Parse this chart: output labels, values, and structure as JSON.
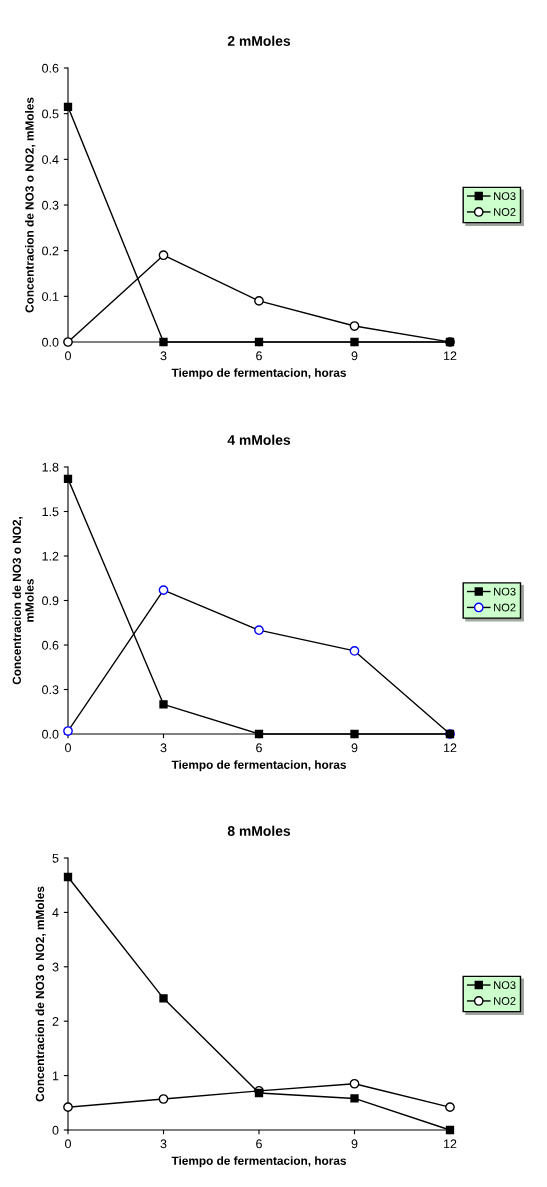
{
  "chart_data": [
    {
      "type": "line",
      "title": "2 mMoles",
      "xlabel": "Tiempo de fermentacion, horas",
      "ylabel": "Concentracion de NO3 o NO2, mMoles",
      "x": [
        0,
        3,
        6,
        9,
        12
      ],
      "xlim": [
        0,
        12
      ],
      "xticks": [
        0,
        3,
        6,
        9,
        12
      ],
      "ylim": [
        0,
        0.6
      ],
      "yticks": [
        {
          "value": 0,
          "label": "0.0"
        },
        {
          "value": 0.1,
          "label": "0.1"
        },
        {
          "value": 0.2,
          "label": "0.2"
        },
        {
          "value": 0.3,
          "label": "0.3"
        },
        {
          "value": 0.4,
          "label": "0.4"
        },
        {
          "value": 0.5,
          "label": "0.5"
        },
        {
          "value": 0.6,
          "label": "0.6"
        }
      ],
      "grid": false,
      "legend": "right",
      "series": [
        {
          "name": "NO3",
          "color": "#000000",
          "marker": "square",
          "values": [
            0.515,
            0,
            0,
            0,
            0
          ]
        },
        {
          "name": "NO2",
          "color": "#000000",
          "marker": "circle",
          "values": [
            0,
            0.19,
            0.09,
            0.035,
            0
          ]
        }
      ]
    },
    {
      "type": "line",
      "title": "4 mMoles",
      "xlabel": "Tiempo de fermentacion, horas",
      "ylabel": "Concentracion de NO3 o NO2,\nmMoles",
      "x": [
        0,
        3,
        6,
        9,
        12
      ],
      "xlim": [
        0,
        12
      ],
      "xticks": [
        0,
        3,
        6,
        9,
        12
      ],
      "ylim": [
        0,
        1.8
      ],
      "yticks": [
        {
          "value": 0,
          "label": "0.0"
        },
        {
          "value": 0.3,
          "label": "0.3"
        },
        {
          "value": 0.6,
          "label": "0.6"
        },
        {
          "value": 0.9,
          "label": "0.9"
        },
        {
          "value": 1.2,
          "label": "1.2"
        },
        {
          "value": 1.5,
          "label": "1.5"
        },
        {
          "value": 1.8,
          "label": "1.8"
        }
      ],
      "grid": false,
      "legend": "right",
      "series": [
        {
          "name": "NO3",
          "color": "#000000",
          "marker": "square",
          "values": [
            1.72,
            0.2,
            0,
            0,
            0
          ]
        },
        {
          "name": "NO2",
          "color": "#0000ff",
          "marker": "circle",
          "values": [
            0.02,
            0.97,
            0.7,
            0.56,
            0
          ]
        }
      ]
    },
    {
      "type": "line",
      "title": "8 mMoles",
      "xlabel": "Tiempo de fermentacion, horas",
      "ylabel": "Concentracion de NO3 o NO2, mMoles",
      "x": [
        0,
        3,
        6,
        9,
        12
      ],
      "xlim": [
        0,
        12
      ],
      "xticks": [
        0,
        3,
        6,
        9,
        12
      ],
      "ylim": [
        0,
        5
      ],
      "yticks": [
        0,
        1,
        2,
        3,
        4,
        5
      ],
      "grid": false,
      "legend": "right",
      "series": [
        {
          "name": "NO3",
          "color": "#000000",
          "marker": "square",
          "values": [
            4.65,
            2.42,
            0.68,
            0.58,
            0
          ]
        },
        {
          "name": "NO2",
          "color": "#000000",
          "marker": "circle",
          "values": [
            0.42,
            0.57,
            0.72,
            0.85,
            0.42
          ]
        }
      ]
    }
  ]
}
